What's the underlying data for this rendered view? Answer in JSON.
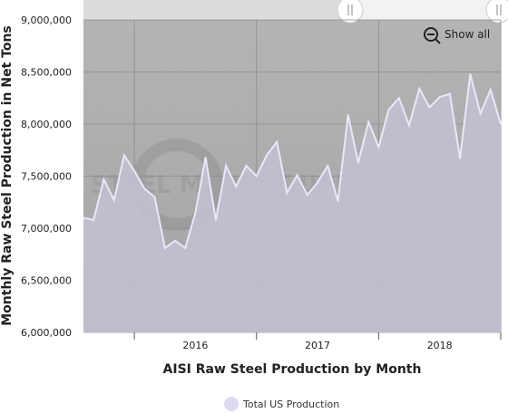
{
  "chart_data": {
    "type": "area",
    "xlabel": "AISI Raw Steel Production by Month",
    "ylabel": "Monthly Raw Steel Production in Net Tons",
    "ylim": [
      6000000,
      9000000
    ],
    "y_ticks": [
      "6,000,000",
      "6,500,000",
      "7,000,000",
      "7,500,000",
      "8,000,000",
      "8,500,000",
      "9,000,000"
    ],
    "x_ticks": [
      "2016",
      "2017",
      "2018"
    ],
    "x_start": "2015-08",
    "series": [
      {
        "name": "Total US Production",
        "color": "#e6e2f5",
        "values": [
          7100000,
          7080000,
          7470000,
          7270000,
          7700000,
          7550000,
          7380000,
          7300000,
          6810000,
          6880000,
          6810000,
          7150000,
          7680000,
          7080000,
          7600000,
          7400000,
          7600000,
          7500000,
          7700000,
          7830000,
          7340000,
          7510000,
          7320000,
          7440000,
          7600000,
          7260000,
          8090000,
          7630000,
          8020000,
          7780000,
          8140000,
          8250000,
          7990000,
          8340000,
          8160000,
          8260000,
          8290000,
          7670000,
          8480000,
          8100000,
          8330000,
          8000000
        ]
      }
    ],
    "grid": true,
    "legend": "bottom-center"
  },
  "watermark": "STEEL MARKET UPDATE",
  "controls": {
    "show_all": "Show all"
  },
  "legend": {
    "label": "Total US Production"
  },
  "colors": {
    "plot_upper": "#b5b5b5",
    "plot_lower": "#a6a6a6",
    "area_fill": "#c1c0d0",
    "line": "#ebe6fa"
  }
}
